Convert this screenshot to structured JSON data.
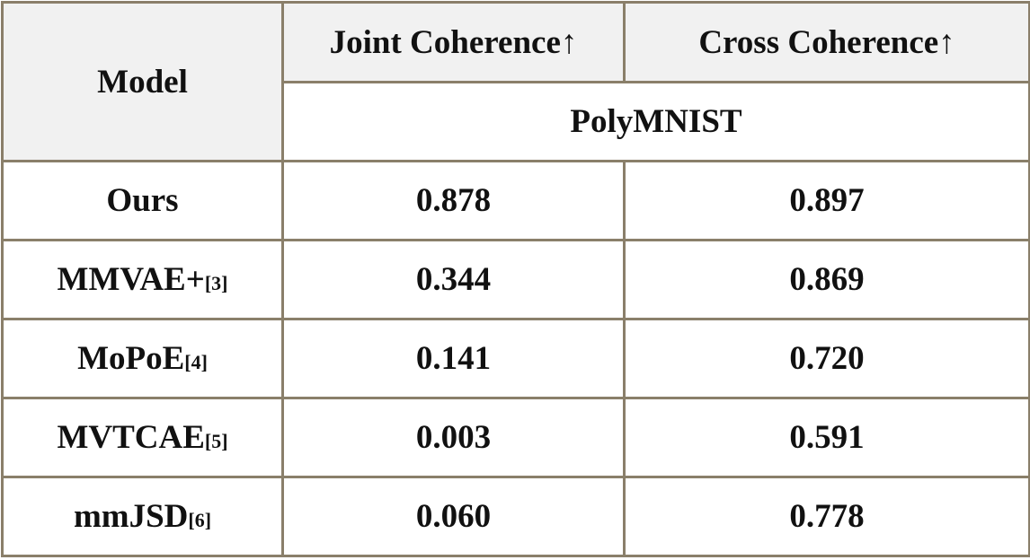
{
  "table": {
    "header": {
      "model": "Model",
      "metrics": [
        "Joint Coherence↑",
        "Cross Coherence↑"
      ],
      "dataset": "PolyMNIST"
    },
    "rows": [
      {
        "model": "Ours",
        "values": [
          "0.878",
          "0.897"
        ]
      },
      {
        "model": "MMVAE+",
        "ref": "[3]",
        "values": [
          "0.344",
          "0.869"
        ]
      },
      {
        "model": "MoPoE",
        "ref": "[4]",
        "values": [
          "0.141",
          "0.720"
        ]
      },
      {
        "model": "MVTCAE",
        "ref": "[5]",
        "values": [
          "0.003",
          "0.591"
        ]
      },
      {
        "model": "mmJSD",
        "ref": "[6]",
        "values": [
          "0.060",
          "0.778"
        ]
      }
    ]
  }
}
